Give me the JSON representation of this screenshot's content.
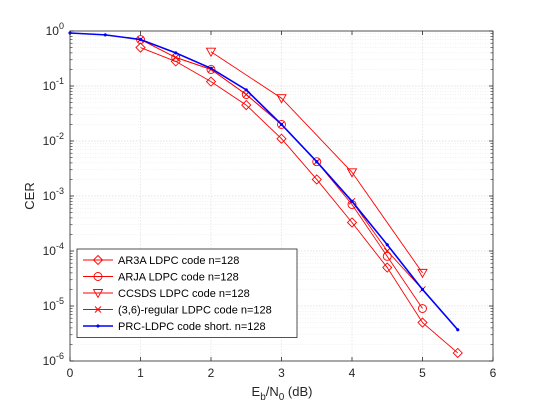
{
  "chart_data": {
    "type": "line",
    "title": "",
    "xlabel": "E",
    "xlabel_sub1": "b",
    "xlabel_mid": "/N",
    "xlabel_sub2": "0",
    "xlabel_tail": " (dB)",
    "ylabel": "CER",
    "xlim": [
      0,
      6
    ],
    "ylim": [
      1e-06,
      1
    ],
    "yscale": "log",
    "xticks": [
      0,
      1,
      2,
      3,
      4,
      5,
      6
    ],
    "xtick_labels": [
      "0",
      "1",
      "2",
      "3",
      "4",
      "5",
      "6"
    ],
    "yticks": [
      1e-06,
      1e-05,
      0.0001,
      0.001,
      0.01,
      0.1,
      1
    ],
    "ytick_bases": [
      "10",
      "10",
      "10",
      "10",
      "10",
      "10",
      "10"
    ],
    "ytick_exps": [
      "-6",
      "-5",
      "-4",
      "-3",
      "-2",
      "-1",
      "0"
    ],
    "grid": true,
    "legend_position": "bottom-left",
    "series": [
      {
        "name": "AR3A LDPC code n=128",
        "color": "#ff0000",
        "marker": "diamond",
        "x": [
          1,
          1.5,
          2,
          2.5,
          3,
          3.5,
          4,
          4.5,
          5,
          5.5
        ],
        "y": [
          0.5,
          0.28,
          0.12,
          0.045,
          0.011,
          0.002,
          0.00033,
          5e-05,
          5e-06,
          1.4e-06
        ]
      },
      {
        "name": "ARJA LDPC code n=128",
        "color": "#ff0000",
        "marker": "circle",
        "x": [
          1,
          1.5,
          2,
          2.5,
          3,
          3.5,
          4,
          4.5,
          5
        ],
        "y": [
          0.7,
          0.33,
          0.2,
          0.07,
          0.02,
          0.0042,
          0.0007,
          8e-05,
          9e-06
        ]
      },
      {
        "name": "CCSDS LDPC code n=128",
        "color": "#ff0000",
        "marker": "triangle-down",
        "x": [
          2,
          3,
          4,
          5
        ],
        "y": [
          0.42,
          0.06,
          0.0027,
          4e-05
        ]
      },
      {
        "name": "(3,6)-regular LDPC code n=128",
        "color": "#ff0000",
        "marker": "x",
        "x": [
          1,
          1.5,
          2,
          2.5,
          3,
          3.5,
          4,
          4.5,
          5
        ],
        "y": [
          0.7,
          0.33,
          0.2,
          0.07,
          0.02,
          0.0042,
          0.0008,
          0.0001,
          2e-05
        ]
      },
      {
        "name": "PRC-LDPC code short. n=128",
        "color": "#0000ff",
        "marker": "dot",
        "x": [
          0,
          0.5,
          1,
          1.5,
          2,
          2.5,
          3,
          3.5,
          4,
          4.5,
          5,
          5.5
        ],
        "y": [
          0.92,
          0.85,
          0.7,
          0.4,
          0.21,
          0.085,
          0.02,
          0.0042,
          0.0008,
          0.00013,
          2e-05,
          3.7e-06
        ]
      }
    ]
  }
}
